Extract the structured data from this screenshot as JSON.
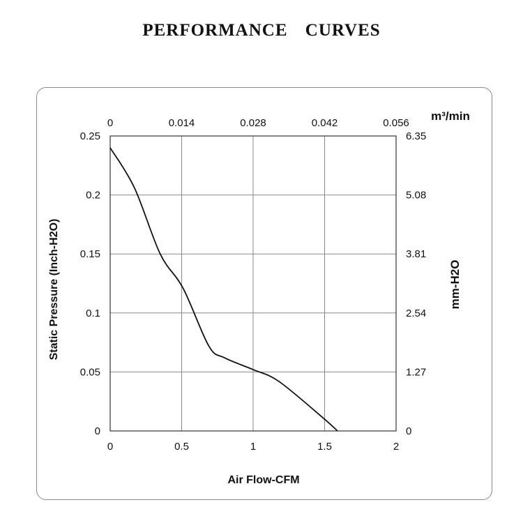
{
  "title": "PERFORMANCE    CURVES",
  "chart_data": {
    "type": "line",
    "xlabel": "Air Flow-CFM",
    "ylabel": "Static Pressure (Inch-H2O)",
    "x2label": "m³/min",
    "y2label": "mm-H2O",
    "xlim": [
      0,
      2
    ],
    "ylim": [
      0,
      0.25
    ],
    "grid": true,
    "x_ticks": [
      "0",
      "0.5",
      "1",
      "1.5",
      "2"
    ],
    "y_ticks": [
      "0",
      "0.05",
      "0.1",
      "0.15",
      "0.2",
      "0.25"
    ],
    "x2_ticks": [
      "0",
      "0.014",
      "0.028",
      "0.042",
      "0.056"
    ],
    "y2_ticks": [
      "0",
      "1.27",
      "2.54",
      "3.81",
      "5.08",
      "6.35"
    ],
    "series": [
      {
        "x": [
          0,
          0.17,
          0.35,
          0.51,
          0.69,
          0.8,
          1.0,
          1.18,
          1.49,
          1.59
        ],
        "y": [
          0.24,
          0.206,
          0.15,
          0.121,
          0.072,
          0.062,
          0.052,
          0.042,
          0.011,
          0
        ]
      }
    ]
  }
}
